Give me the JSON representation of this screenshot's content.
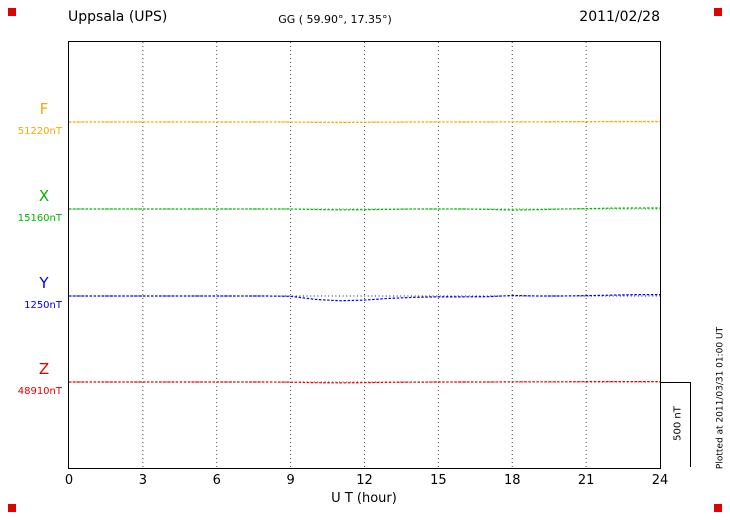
{
  "header": {
    "station": "Uppsala (UPS)",
    "coords": "GG ( 59.90°,  17.35°)",
    "date": "2011/02/28"
  },
  "scale_bar": {
    "label": "500 nT"
  },
  "footnote": "Plotted at 2011/03/31 01:00 UT",
  "chart_data": {
    "type": "line",
    "title": "Uppsala (UPS)",
    "subtitle_coordinates": "GG ( 59.90°,  17.35°)",
    "date": "2011/02/28",
    "xlabel": "U T (hour)",
    "xlim": [
      0,
      24
    ],
    "x_ticks": [
      0,
      3,
      6,
      9,
      12,
      15,
      18,
      21,
      24
    ],
    "grid": "vertical dotted lines every 3 hours",
    "legend_position": "left margin",
    "scale_bar_nT": 500,
    "x_hours": [
      0,
      1,
      2,
      3,
      4,
      5,
      6,
      7,
      8,
      9,
      10,
      11,
      12,
      13,
      14,
      15,
      16,
      17,
      18,
      19,
      20,
      21,
      22,
      23,
      24
    ],
    "series": [
      {
        "name": "F",
        "baseline_label": "51220nT",
        "baseline_nT": 51220,
        "color": "#f5a800",
        "offsets_nT": [
          0,
          0,
          0,
          0,
          0,
          0,
          0,
          0,
          0,
          0,
          -2,
          -3,
          -2,
          -1,
          0,
          0,
          0,
          0,
          1,
          1,
          2,
          2,
          3,
          3,
          3
        ]
      },
      {
        "name": "X",
        "baseline_label": "15160nT",
        "baseline_nT": 15160,
        "color": "#00b400",
        "offsets_nT": [
          0,
          0,
          0,
          0,
          0,
          0,
          0,
          0,
          0,
          0,
          -3,
          -5,
          -4,
          -2,
          0,
          0,
          0,
          -2,
          -6,
          -4,
          0,
          2,
          5,
          6,
          6
        ]
      },
      {
        "name": "Y",
        "baseline_label": "1250nT",
        "baseline_nT": 1250,
        "color": "#0000e8",
        "offsets_nT": [
          0,
          0,
          0,
          0,
          0,
          0,
          0,
          0,
          0,
          -2,
          -20,
          -28,
          -24,
          -14,
          -8,
          -5,
          -5,
          -4,
          3,
          0,
          0,
          2,
          5,
          8,
          8
        ]
      },
      {
        "name": "Z",
        "baseline_label": "48910nT",
        "baseline_nT": 48910,
        "color": "#e00000",
        "offsets_nT": [
          0,
          0,
          0,
          0,
          0,
          0,
          0,
          0,
          0,
          -1,
          -4,
          -5,
          -4,
          -2,
          -1,
          0,
          0,
          0,
          1,
          1,
          1,
          2,
          2,
          2,
          2
        ]
      }
    ]
  }
}
